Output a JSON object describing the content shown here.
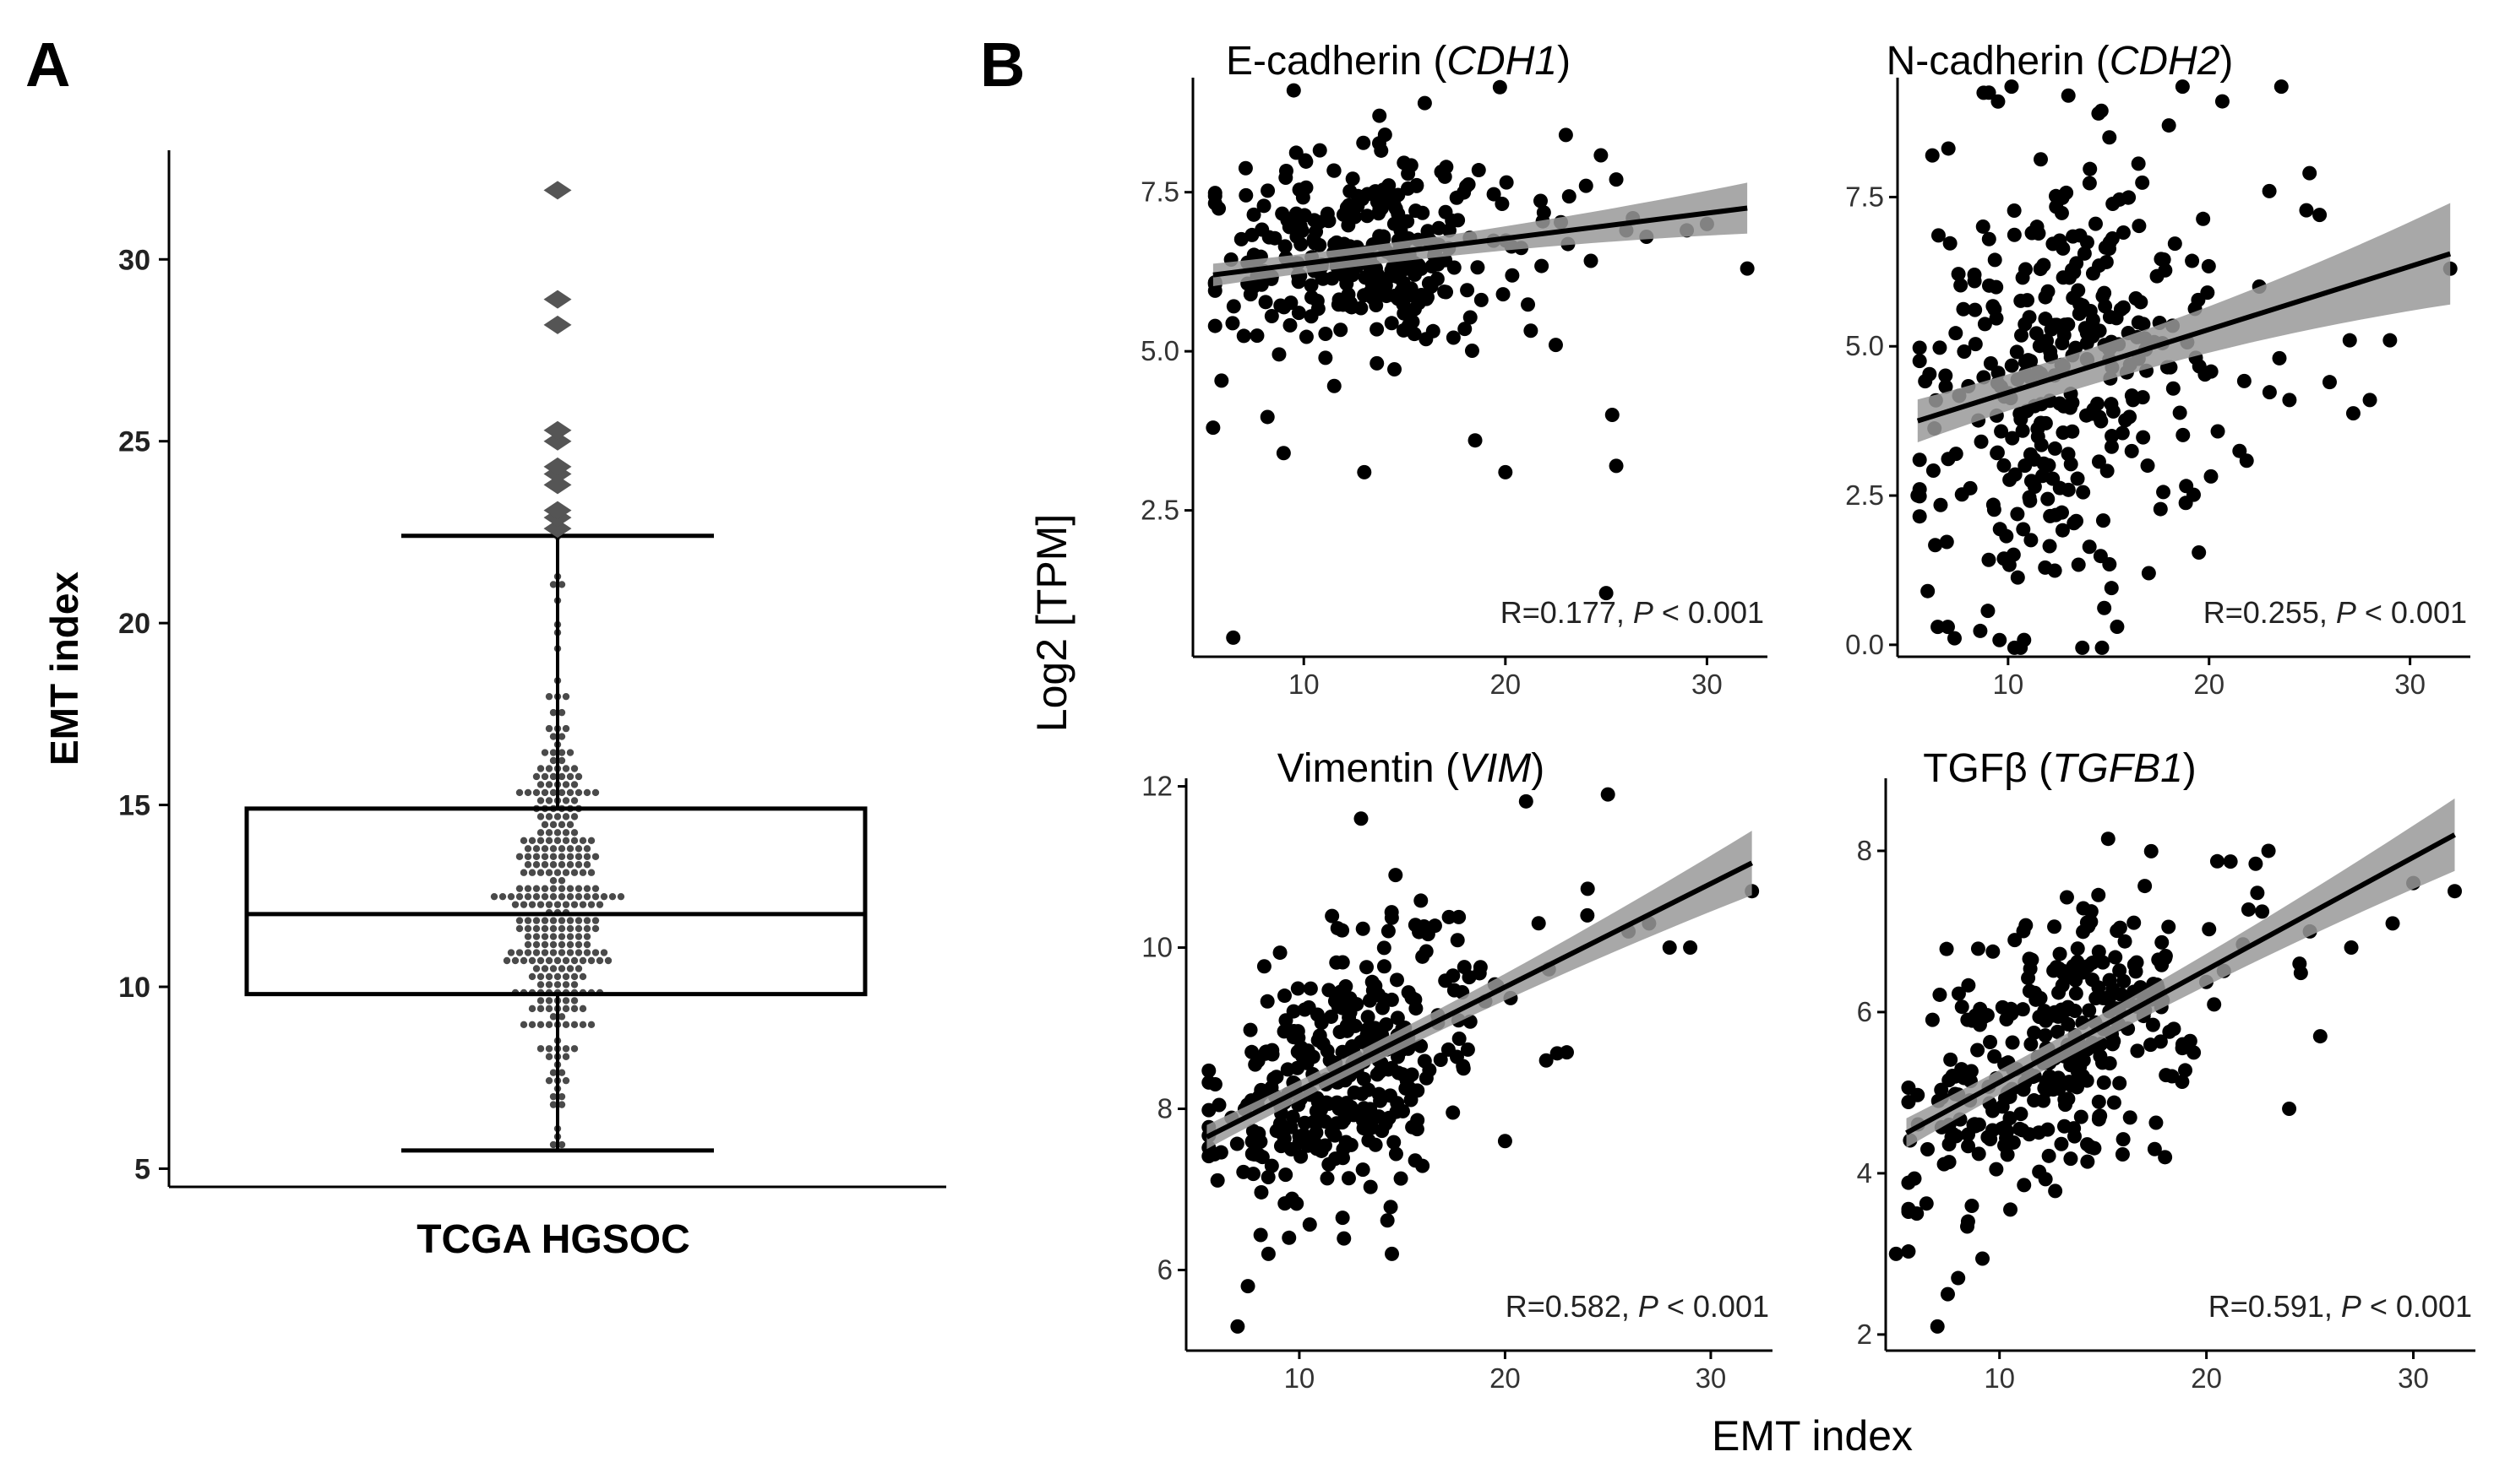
{
  "panel_labels": [
    "A",
    "B"
  ],
  "chart_data": [
    {
      "type": "box",
      "panel": "A",
      "title": "",
      "xlabel": "TCGA HGSOC",
      "ylabel": "EMT index",
      "ylim": [
        4.5,
        33
      ],
      "yticks": [
        "5",
        "10",
        "15",
        "20",
        "25",
        "30"
      ],
      "box": {
        "min": 5.5,
        "q1": 9.8,
        "median": 12.0,
        "q3": 14.9,
        "whisker_high": 22.4
      },
      "outliers": [
        22.6,
        22.9,
        23.1,
        23.8,
        24.1,
        24.3,
        25.0,
        25.3,
        28.2,
        28.9,
        31.9
      ],
      "grid": false,
      "legend": "none"
    },
    {
      "type": "scatter",
      "panel": "B",
      "title": "E-cadherin (CDH1)",
      "title_main": "E-cadherin (",
      "title_gene": "CDH1",
      "title_end": ")",
      "xlim": [
        4.5,
        33
      ],
      "ylim": [
        0.2,
        9.3
      ],
      "xticks": [
        "10",
        "20",
        "30"
      ],
      "yticks": [
        "2.5",
        "5.0",
        "7.5"
      ],
      "annotation": {
        "r": "R=0.177, ",
        "p": "P",
        "rest": " < 0.001"
      },
      "fit": {
        "x0": 5.5,
        "y0": 6.2,
        "x1": 32,
        "y1": 7.25
      },
      "band_halfwidth": [
        0.15,
        0.4
      ],
      "cloud": {
        "n": 330,
        "mean_y": 6.5,
        "noise": 0.75,
        "seed": 11
      },
      "points": [
        [
          5.5,
          3.8
        ],
        [
          6.5,
          0.5
        ],
        [
          9,
          3.4
        ],
        [
          13,
          3.1
        ],
        [
          18.5,
          3.6
        ],
        [
          20,
          3.1
        ],
        [
          22.5,
          5.1
        ],
        [
          25,
          1.2
        ],
        [
          25.5,
          3.2
        ],
        [
          25.3,
          4.0
        ],
        [
          26,
          6.9
        ],
        [
          27,
          6.8
        ],
        [
          29,
          6.9
        ],
        [
          30,
          7.0
        ],
        [
          32,
          6.3
        ],
        [
          9.5,
          9.1
        ],
        [
          16,
          8.9
        ],
        [
          23,
          8.4
        ],
        [
          24,
          7.6
        ],
        [
          25.5,
          7.7
        ]
      ]
    },
    {
      "type": "scatter",
      "panel": "B",
      "title": "N-cadherin (CDH2)",
      "title_main": "N-cadherin (",
      "title_gene": "CDH2",
      "title_end": ")",
      "xlim": [
        4.5,
        33
      ],
      "ylim": [
        -0.2,
        9.5
      ],
      "xticks": [
        "10",
        "20",
        "30"
      ],
      "yticks": [
        "0.0",
        "2.5",
        "5.0",
        "7.5"
      ],
      "annotation": {
        "r": "R=0.255, ",
        "p": "P",
        "rest": " < 0.001"
      },
      "fit": {
        "x0": 5.5,
        "y0": 3.75,
        "x1": 32,
        "y1": 6.55
      },
      "band_halfwidth": [
        0.3,
        0.85
      ],
      "cloud": {
        "n": 330,
        "mean_y": 4.6,
        "noise": 1.8,
        "seed": 23
      },
      "points": [
        [
          5.5,
          2.5
        ],
        [
          6,
          0.9
        ],
        [
          6.5,
          0.3
        ],
        [
          7,
          0.3
        ],
        [
          9.5,
          9.1
        ],
        [
          13,
          9.2
        ],
        [
          14.5,
          8.9
        ],
        [
          18,
          8.7
        ],
        [
          23,
          7.6
        ],
        [
          25,
          7.9
        ],
        [
          25.5,
          7.2
        ],
        [
          27,
          5.1
        ],
        [
          28,
          4.1
        ],
        [
          29,
          5.1
        ],
        [
          32,
          6.3
        ],
        [
          26,
          4.4
        ],
        [
          24,
          4.1
        ],
        [
          22.5,
          6.0
        ],
        [
          23.5,
          4.8
        ],
        [
          17,
          1.2
        ]
      ]
    },
    {
      "type": "scatter",
      "panel": "B",
      "title": "Vimentin (VIM)",
      "title_main": "Vimentin (",
      "title_gene": "VIM",
      "title_end": ")",
      "xlim": [
        4.5,
        33
      ],
      "ylim": [
        5.0,
        12.1
      ],
      "xticks": [
        "10",
        "20",
        "30"
      ],
      "yticks": [
        "6",
        "8",
        "10",
        "12"
      ],
      "annotation": {
        "r": "R=0.582, ",
        "p": "P",
        "rest": " < 0.001"
      },
      "fit": {
        "x0": 5.5,
        "y0": 7.65,
        "x1": 32,
        "y1": 11.05
      },
      "band_halfwidth": [
        0.12,
        0.4
      ],
      "cloud": {
        "n": 330,
        "mean_y": 8.5,
        "noise": 0.75,
        "seed": 37
      },
      "points": [
        [
          7,
          5.3
        ],
        [
          7.5,
          5.8
        ],
        [
          8.5,
          6.2
        ],
        [
          9.5,
          6.4
        ],
        [
          14.5,
          6.2
        ],
        [
          20,
          7.6
        ],
        [
          13,
          11.6
        ],
        [
          25,
          11.9
        ],
        [
          32,
          10.7
        ],
        [
          28,
          10.0
        ],
        [
          29,
          10.0
        ],
        [
          26,
          10.2
        ],
        [
          27,
          10.3
        ],
        [
          24,
          10.4
        ],
        [
          23,
          8.7
        ],
        [
          22,
          8.6
        ]
      ]
    },
    {
      "type": "scatter",
      "panel": "B",
      "title": "TGFβ (TGFB1)",
      "title_main": "TGFβ (",
      "title_gene": "TGFB1",
      "title_end": ")",
      "xlim": [
        4.5,
        33
      ],
      "ylim": [
        1.8,
        8.9
      ],
      "xticks": [
        "10",
        "20",
        "30"
      ],
      "yticks": [
        "2",
        "4",
        "6",
        "8"
      ],
      "annotation": {
        "r": "R=0.591, ",
        "p": "P",
        "rest": " < 0.001"
      },
      "fit": {
        "x0": 5.5,
        "y0": 4.5,
        "x1": 32,
        "y1": 8.2
      },
      "band_halfwidth": [
        0.15,
        0.45
      ],
      "cloud": {
        "n": 330,
        "mean_y": 5.5,
        "noise": 0.75,
        "seed": 51
      },
      "points": [
        [
          5,
          3.0
        ],
        [
          7,
          2.1
        ],
        [
          7.5,
          2.5
        ],
        [
          8,
          2.7
        ],
        [
          6,
          3.5
        ],
        [
          17.5,
          4.3
        ],
        [
          18,
          4.2
        ],
        [
          24,
          4.8
        ],
        [
          23,
          8.0
        ],
        [
          25,
          7.0
        ],
        [
          25.5,
          5.7
        ],
        [
          27,
          6.8
        ],
        [
          29,
          7.1
        ],
        [
          30,
          7.6
        ],
        [
          32,
          7.5
        ],
        [
          24.5,
          6.6
        ]
      ]
    }
  ],
  "shared_labels": {
    "ylabel": "Log2 [TPM]",
    "xlabel": "EMT index"
  }
}
